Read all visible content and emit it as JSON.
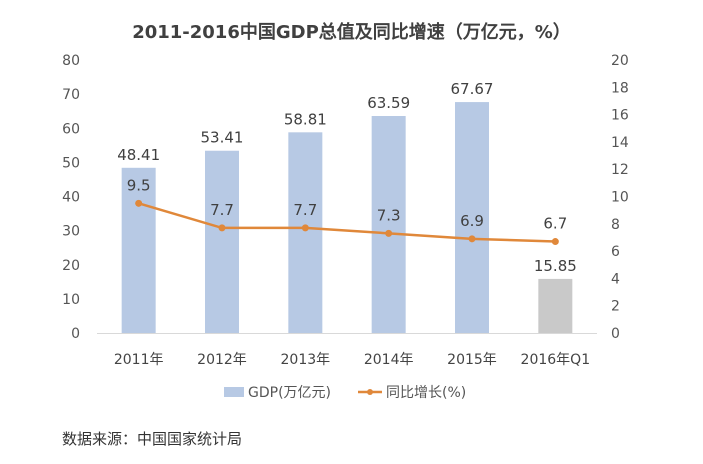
{
  "chart_data": {
    "type": "bar+line",
    "title": "2011-2016中国GDP总值及同比增速（万亿元，%）",
    "categories": [
      "2011年",
      "2012年",
      "2013年",
      "2014年",
      "2015年",
      "2016年Q1"
    ],
    "series": [
      {
        "name": "GDP(万亿元)",
        "type": "bar",
        "axis": "left",
        "values": [
          48.41,
          53.41,
          58.81,
          63.59,
          67.67,
          15.85
        ],
        "colors": [
          "#b7c9e4",
          "#b7c9e4",
          "#b7c9e4",
          "#b7c9e4",
          "#b7c9e4",
          "#c9c9c9"
        ]
      },
      {
        "name": "同比增长(%)",
        "type": "line",
        "axis": "right",
        "values": [
          9.5,
          7.7,
          7.7,
          7.3,
          6.9,
          6.7
        ],
        "color": "#e0883a"
      }
    ],
    "y_left": {
      "range": [
        0,
        80
      ],
      "ticks": [
        0,
        10,
        20,
        30,
        40,
        50,
        60,
        70,
        80
      ]
    },
    "y_right": {
      "range": [
        0,
        20
      ],
      "ticks": [
        0,
        2,
        4,
        6,
        8,
        10,
        12,
        14,
        16,
        18,
        20
      ]
    },
    "grid": false,
    "legend": "bottom"
  },
  "source": "数据来源：中国国家统计局"
}
